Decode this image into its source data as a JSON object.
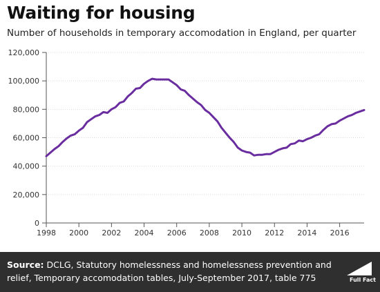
{
  "header": {
    "title": "Waiting for housing",
    "subtitle": "Number of households in temporary accomodation in England, per quarter"
  },
  "footer": {
    "source_label": "Source:",
    "source_text": "DCLG, Statutory homelessness and homelessness prevention and relief, Temporary accomodation tables, July-September 2017, table 775",
    "logo_text": "Full Fact"
  },
  "colors": {
    "line": "#6a2d9f",
    "footer_bg": "#2f2f2f"
  },
  "chart_data": {
    "type": "line",
    "title": "Waiting for housing",
    "xlabel": "",
    "ylabel": "",
    "xlim": [
      1998,
      2017.5
    ],
    "ylim": [
      0,
      120000
    ],
    "y_ticks": [
      0,
      20000,
      40000,
      60000,
      80000,
      100000,
      120000
    ],
    "y_tick_labels": [
      "0",
      "20,000",
      "40,000",
      "60,000",
      "80,000",
      "100,000",
      "120,000"
    ],
    "x_ticks": [
      1998,
      2000,
      2002,
      2004,
      2006,
      2008,
      2010,
      2012,
      2014,
      2016
    ],
    "x_tick_labels": [
      "1998",
      "2000",
      "2002",
      "2004",
      "2006",
      "2008",
      "2010",
      "2012",
      "2014",
      "2016"
    ],
    "grid": "horizontal",
    "series": [
      {
        "x": [
          1998.0,
          1998.25,
          1998.5,
          1998.75,
          1999.0,
          1999.25,
          1999.5,
          1999.75,
          2000.0,
          2000.25,
          2000.5,
          2000.75,
          2001.0,
          2001.25,
          2001.5,
          2001.75,
          2002.0,
          2002.25,
          2002.5,
          2002.75,
          2003.0,
          2003.25,
          2003.5,
          2003.75,
          2004.0,
          2004.25,
          2004.5,
          2004.75,
          2005.0,
          2005.25,
          2005.5,
          2005.75,
          2006.0,
          2006.25,
          2006.5,
          2006.75,
          2007.0,
          2007.25,
          2007.5,
          2007.75,
          2008.0,
          2008.25,
          2008.5,
          2008.75,
          2009.0,
          2009.25,
          2009.5,
          2009.75,
          2010.0,
          2010.25,
          2010.5,
          2010.75,
          2011.0,
          2011.25,
          2011.5,
          2011.75,
          2012.0,
          2012.25,
          2012.5,
          2012.75,
          2013.0,
          2013.25,
          2013.5,
          2013.75,
          2014.0,
          2014.25,
          2014.5,
          2014.75,
          2015.0,
          2015.25,
          2015.5,
          2015.75,
          2016.0,
          2016.25,
          2016.5,
          2016.75,
          2017.0,
          2017.25,
          2017.5
        ],
        "values": [
          47000,
          49500,
          52000,
          54000,
          57000,
          59500,
          61500,
          62500,
          65000,
          67000,
          71000,
          73000,
          75000,
          76000,
          78000,
          77500,
          80000,
          81500,
          84500,
          85500,
          89000,
          91500,
          94500,
          95000,
          98000,
          100000,
          101500,
          101000,
          101000,
          101000,
          101000,
          99000,
          97000,
          94000,
          93000,
          90000,
          87500,
          85000,
          83000,
          79500,
          77500,
          74500,
          71500,
          67000,
          63500,
          60000,
          57000,
          53000,
          51000,
          50000,
          49500,
          47500,
          48000,
          48000,
          48500,
          48500,
          50000,
          51500,
          52500,
          53000,
          55500,
          56000,
          58000,
          57500,
          59000,
          60000,
          61500,
          62500,
          65500,
          68000,
          69500,
          70000,
          72000,
          73500,
          75000,
          76000,
          77500,
          78500,
          79500
        ]
      }
    ]
  }
}
